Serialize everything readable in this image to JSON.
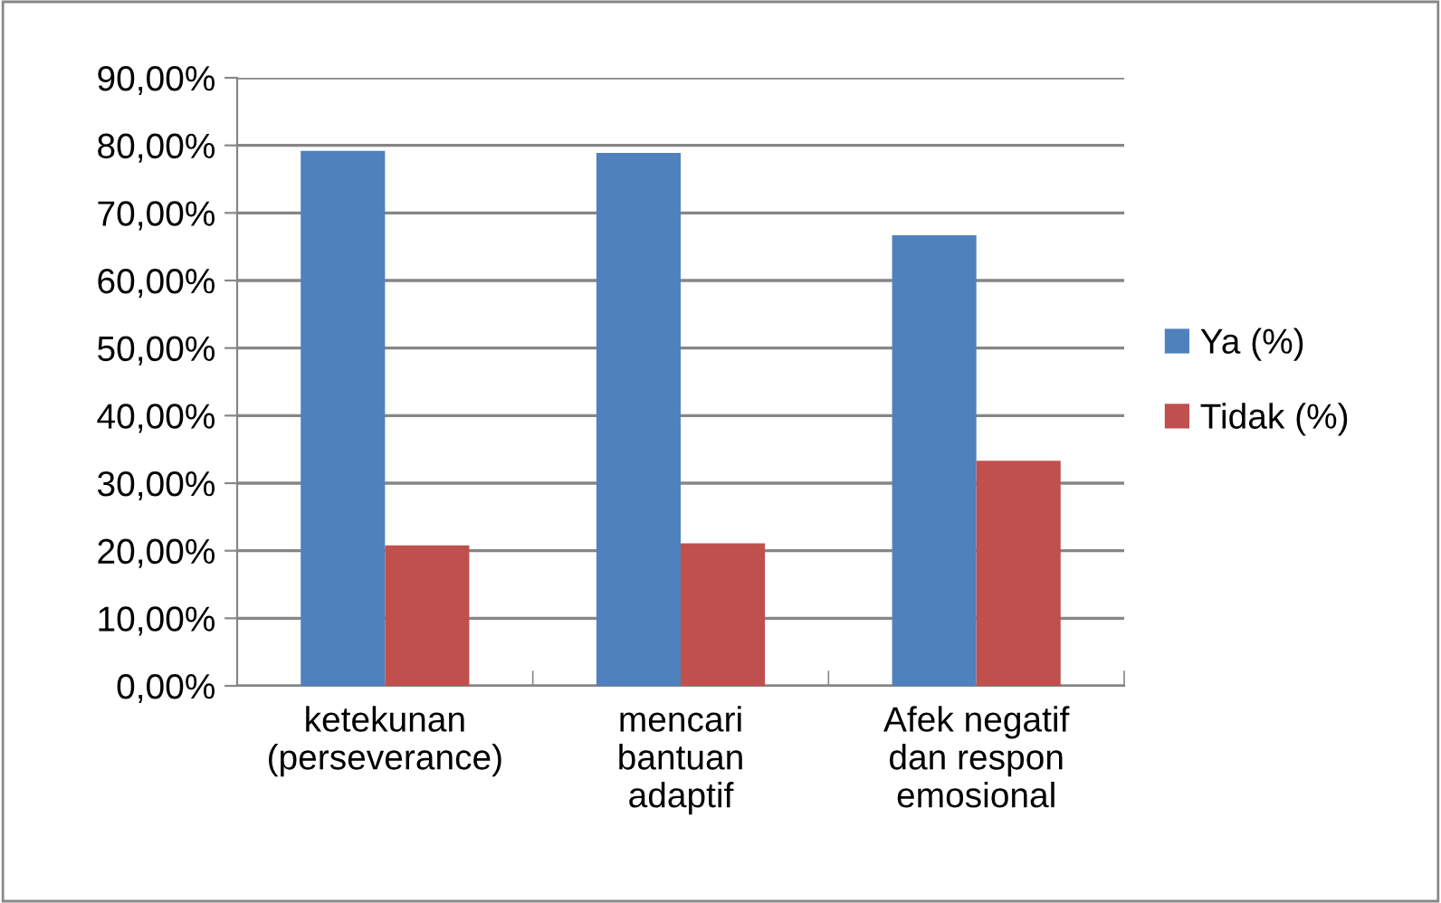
{
  "chart_data": {
    "type": "bar",
    "categories": [
      "ketekunan\n(perseverance)",
      "mencari\nbantuan\nadaptif",
      "Afek negatif\ndan respon\nemosional"
    ],
    "series": [
      {
        "name": "Ya (%)",
        "color": "#4f81bd",
        "values": [
          79.2,
          78.9,
          66.7
        ]
      },
      {
        "name": "Tidak (%)",
        "color": "#c0504d",
        "values": [
          20.8,
          21.1,
          33.3
        ]
      }
    ],
    "ylim": [
      0,
      90
    ],
    "yticks": [
      {
        "value": 0,
        "label": "0,00%"
      },
      {
        "value": 10,
        "label": "10,00%"
      },
      {
        "value": 20,
        "label": "20,00%"
      },
      {
        "value": 30,
        "label": "30,00%"
      },
      {
        "value": 40,
        "label": "40,00%"
      },
      {
        "value": 50,
        "label": "50,00%"
      },
      {
        "value": 60,
        "label": "60,00%"
      },
      {
        "value": 70,
        "label": "70,00%"
      },
      {
        "value": 80,
        "label": "80,00%"
      },
      {
        "value": 90,
        "label": "90,00%"
      }
    ],
    "grid": "y",
    "legend": "right"
  }
}
